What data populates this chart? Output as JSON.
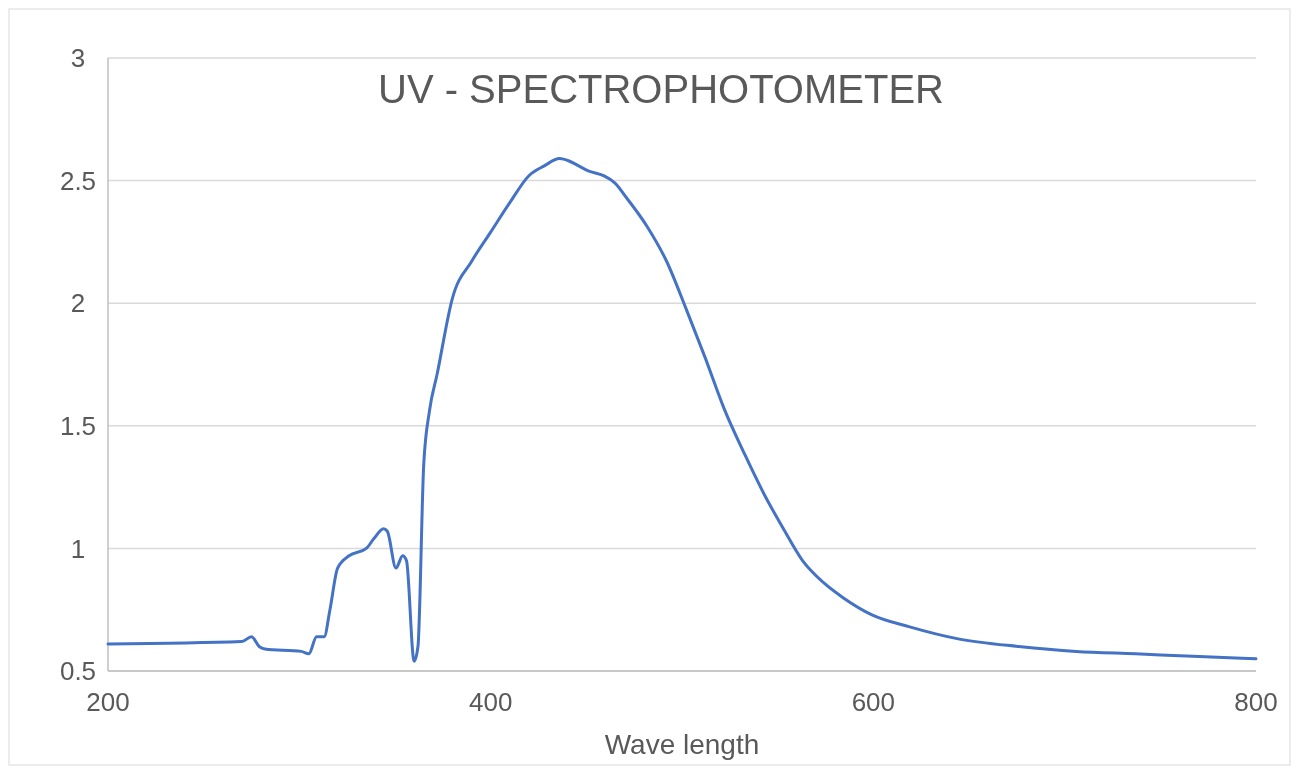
{
  "chart_data": {
    "type": "line",
    "title": "UV - SPECTROPHOTOMETER",
    "xlabel": "Wave length",
    "x": [
      200,
      270,
      275,
      279,
      282,
      301,
      305,
      309,
      313,
      316,
      320,
      326,
      335,
      339,
      344,
      346,
      350.5,
      354,
      356,
      360,
      362,
      365,
      368,
      372,
      380,
      390,
      400,
      410,
      420,
      428,
      436,
      441,
      446,
      451,
      459,
      465,
      471,
      482,
      492,
      502,
      512,
      522,
      533,
      543,
      553,
      563,
      574,
      584,
      599,
      619,
      645,
      676,
      706,
      737,
      767,
      800
    ],
    "series": [
      {
        "color": "#4472c4",
        "values": [
          0.61,
          0.62,
          0.64,
          0.6,
          0.59,
          0.58,
          0.57,
          0.64,
          0.64,
          0.75,
          0.92,
          0.97,
          1.0,
          1.04,
          1.08,
          1.07,
          0.92,
          0.97,
          0.95,
          0.54,
          0.6,
          1.34,
          1.56,
          1.71,
          2.02,
          2.17,
          2.29,
          2.41,
          2.52,
          2.56,
          2.59,
          2.58,
          2.56,
          2.54,
          2.52,
          2.49,
          2.43,
          2.31,
          2.17,
          1.98,
          1.78,
          1.57,
          1.38,
          1.22,
          1.08,
          0.95,
          0.86,
          0.8,
          0.73,
          0.68,
          0.63,
          0.6,
          0.58,
          0.57,
          0.56,
          0.55
        ]
      }
    ],
    "xlim": [
      200,
      800
    ],
    "xticks": [
      200,
      400,
      600,
      800
    ],
    "ylim": [
      0.5,
      3
    ],
    "yticks": [
      0.5,
      1,
      1.5,
      2,
      2.5,
      3
    ],
    "grid": "y",
    "marker": "none",
    "line_style": "solid"
  }
}
